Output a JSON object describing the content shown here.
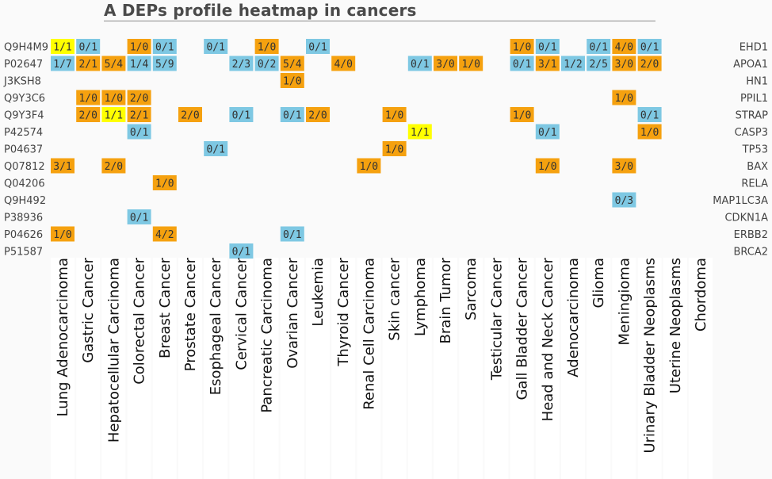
{
  "title": "A DEPs profile heatmap in cancers",
  "colors": {
    "high": "#f5a10f",
    "low": "#7ec8e3",
    "equal": "#ffff00",
    "background": "#fafafa"
  },
  "chart_data": {
    "type": "heatmap",
    "columns": [
      "Lung Adenocarcinoma",
      "Gastric Cancer",
      "Hepatocellular Carcinoma",
      "Colorectal Cancer",
      "Breast Cancer",
      "Prostate Cancer",
      "Esophageal Cancer",
      "Cervical Cancer",
      "Pancreatic Carcinoma",
      "Ovarian Cancer",
      "Leukemia",
      "Thyroid Cancer",
      "Renal Cell Carcinoma",
      "Skin cancer",
      "Lymphoma",
      "Brain Tumor",
      "Sarcoma",
      "Testicular Cancer",
      "Gall Bladder Cancer",
      "Head and Neck Cancer",
      "Adenocarcinoma",
      "Glioma",
      "Meningioma",
      "Urinary Bladder Neoplasms",
      "Uterine Neoplasms",
      "Chordoma"
    ],
    "rows": [
      {
        "id": "Q9H4M9",
        "gene": "EHD1",
        "cells": [
          [
            "1/1",
            "equal"
          ],
          [
            "0/1",
            "low"
          ],
          null,
          [
            "1/0",
            "high"
          ],
          [
            "0/1",
            "low"
          ],
          null,
          [
            "0/1",
            "low"
          ],
          null,
          [
            "1/0",
            "high"
          ],
          null,
          [
            "0/1",
            "low"
          ],
          null,
          null,
          null,
          null,
          null,
          null,
          null,
          [
            "1/0",
            "high"
          ],
          [
            "0/1",
            "low"
          ],
          null,
          [
            "0/1",
            "low"
          ],
          [
            "4/0",
            "high"
          ],
          [
            "0/1",
            "low"
          ],
          null,
          null
        ]
      },
      {
        "id": "P02647",
        "gene": "APOA1",
        "cells": [
          [
            "1/7",
            "low"
          ],
          [
            "2/1",
            "high"
          ],
          [
            "5/4",
            "high"
          ],
          [
            "1/4",
            "low"
          ],
          [
            "5/9",
            "low"
          ],
          null,
          null,
          [
            "2/3",
            "low"
          ],
          [
            "0/2",
            "low"
          ],
          [
            "5/4",
            "high"
          ],
          null,
          [
            "4/0",
            "high"
          ],
          null,
          null,
          [
            "0/1",
            "low"
          ],
          [
            "3/0",
            "high"
          ],
          [
            "1/0",
            "high"
          ],
          null,
          [
            "0/1",
            "low"
          ],
          [
            "3/1",
            "high"
          ],
          [
            "1/2",
            "low"
          ],
          [
            "2/5",
            "low"
          ],
          [
            "3/0",
            "high"
          ],
          [
            "2/0",
            "high"
          ],
          null,
          null
        ]
      },
      {
        "id": "J3KSH8",
        "gene": "HN1",
        "cells": [
          null,
          null,
          null,
          null,
          null,
          null,
          null,
          null,
          null,
          [
            "1/0",
            "high"
          ],
          null,
          null,
          null,
          null,
          null,
          null,
          null,
          null,
          null,
          null,
          null,
          null,
          null,
          null,
          null,
          null
        ]
      },
      {
        "id": "Q9Y3C6",
        "gene": "PPIL1",
        "cells": [
          null,
          [
            "1/0",
            "high"
          ],
          [
            "1/0",
            "high"
          ],
          [
            "2/0",
            "high"
          ],
          null,
          null,
          null,
          null,
          null,
          null,
          null,
          null,
          null,
          null,
          null,
          null,
          null,
          null,
          null,
          null,
          null,
          null,
          [
            "1/0",
            "high"
          ],
          null,
          null,
          null
        ]
      },
      {
        "id": "Q9Y3F4",
        "gene": "STRAP",
        "cells": [
          null,
          [
            "2/0",
            "high"
          ],
          [
            "1/1",
            "equal"
          ],
          [
            "2/1",
            "high"
          ],
          null,
          [
            "2/0",
            "high"
          ],
          null,
          [
            "0/1",
            "low"
          ],
          null,
          [
            "0/1",
            "low"
          ],
          [
            "2/0",
            "high"
          ],
          null,
          null,
          [
            "1/0",
            "high"
          ],
          null,
          null,
          null,
          null,
          [
            "1/0",
            "high"
          ],
          null,
          null,
          null,
          null,
          [
            "0/1",
            "low"
          ],
          null,
          null
        ]
      },
      {
        "id": "P42574",
        "gene": "CASP3",
        "cells": [
          null,
          null,
          null,
          [
            "0/1",
            "low"
          ],
          null,
          null,
          null,
          null,
          null,
          null,
          null,
          null,
          null,
          null,
          [
            "1/1",
            "equal"
          ],
          null,
          null,
          null,
          null,
          [
            "0/1",
            "low"
          ],
          null,
          null,
          null,
          [
            "1/0",
            "high"
          ],
          null,
          null
        ]
      },
      {
        "id": "P04637",
        "gene": "TP53",
        "cells": [
          null,
          null,
          null,
          null,
          null,
          null,
          [
            "0/1",
            "low"
          ],
          null,
          null,
          null,
          null,
          null,
          null,
          [
            "1/0",
            "high"
          ],
          null,
          null,
          null,
          null,
          null,
          null,
          null,
          null,
          null,
          null,
          null,
          null
        ]
      },
      {
        "id": "Q07812",
        "gene": "BAX",
        "cells": [
          [
            "3/1",
            "high"
          ],
          null,
          [
            "2/0",
            "high"
          ],
          null,
          null,
          null,
          null,
          null,
          null,
          null,
          null,
          null,
          [
            "1/0",
            "high"
          ],
          null,
          null,
          null,
          null,
          null,
          null,
          [
            "1/0",
            "high"
          ],
          null,
          null,
          [
            "3/0",
            "high"
          ],
          null,
          null,
          null
        ]
      },
      {
        "id": "Q04206",
        "gene": "RELA",
        "cells": [
          null,
          null,
          null,
          null,
          [
            "1/0",
            "high"
          ],
          null,
          null,
          null,
          null,
          null,
          null,
          null,
          null,
          null,
          null,
          null,
          null,
          null,
          null,
          null,
          null,
          null,
          null,
          null,
          null,
          null
        ]
      },
      {
        "id": "Q9H492",
        "gene": "MAP1LC3A",
        "cells": [
          null,
          null,
          null,
          null,
          null,
          null,
          null,
          null,
          null,
          null,
          null,
          null,
          null,
          null,
          null,
          null,
          null,
          null,
          null,
          null,
          null,
          null,
          [
            "0/3",
            "low"
          ],
          null,
          null,
          null
        ]
      },
      {
        "id": "P38936",
        "gene": "CDKN1A",
        "cells": [
          null,
          null,
          null,
          [
            "0/1",
            "low"
          ],
          null,
          null,
          null,
          null,
          null,
          null,
          null,
          null,
          null,
          null,
          null,
          null,
          null,
          null,
          null,
          null,
          null,
          null,
          null,
          null,
          null,
          null
        ]
      },
      {
        "id": "P04626",
        "gene": "ERBB2",
        "cells": [
          [
            "1/0",
            "high"
          ],
          null,
          null,
          null,
          [
            "4/2",
            "high"
          ],
          null,
          null,
          null,
          null,
          [
            "0/1",
            "low"
          ],
          null,
          null,
          null,
          null,
          null,
          null,
          null,
          null,
          null,
          null,
          null,
          null,
          null,
          null,
          null,
          null
        ]
      },
      {
        "id": "P51587",
        "gene": "BRCA2",
        "cells": [
          null,
          null,
          null,
          null,
          null,
          null,
          null,
          [
            "0/1",
            "low"
          ],
          null,
          null,
          null,
          null,
          null,
          null,
          null,
          null,
          null,
          null,
          null,
          null,
          null,
          null,
          null,
          null,
          null,
          null
        ]
      }
    ]
  }
}
